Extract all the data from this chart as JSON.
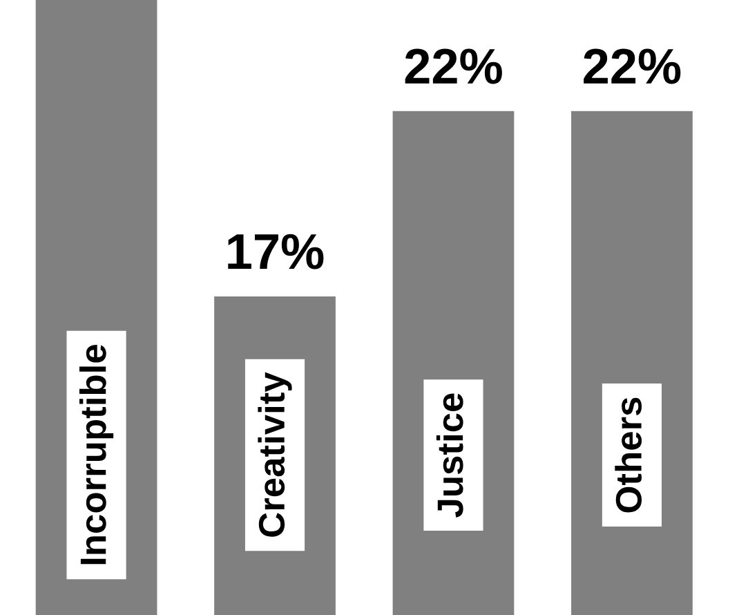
{
  "chart_data": {
    "type": "bar",
    "categories": [
      "Incorruptible",
      "Creativity",
      "Justice",
      "Others"
    ],
    "values": [
      25,
      17,
      22,
      22
    ],
    "value_labels": [
      null,
      "17%",
      "22%",
      "22%"
    ],
    "color": "#808080",
    "ylim": [
      8.4,
      25
    ],
    "tick_labels": "x"
  }
}
